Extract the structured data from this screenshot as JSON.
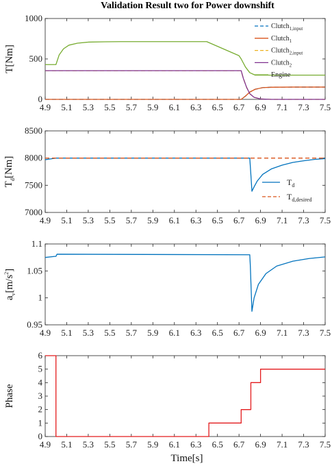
{
  "title": "Validation Result two for Power downshift",
  "xlabel": "Time[s]",
  "x_ticks": [
    "4.9",
    "5.1",
    "5.3",
    "5.5",
    "5.7",
    "5.9",
    "6.1",
    "6.3",
    "6.5",
    "6.7",
    "6.9",
    "7.1",
    "7.3",
    "7.5"
  ],
  "colors": {
    "blue": "#0072bd",
    "orange": "#d95319",
    "yellow": "#edb120",
    "purple": "#7e2f8e",
    "green": "#77ac30",
    "red": "#e31a1c"
  },
  "chart_data": [
    {
      "type": "line",
      "ylabel": "T[Nm]",
      "xlim": [
        4.9,
        7.5
      ],
      "ylim": [
        0,
        1000
      ],
      "y_ticks": [
        "0",
        "500",
        "1000"
      ],
      "legend": {
        "placement": "top-right"
      },
      "series": [
        {
          "name": "Clutch",
          "sub": "1,input",
          "color": "#0072bd",
          "dash": true,
          "x": [
            4.9,
            6.72,
            6.76,
            6.8,
            6.85,
            6.92,
            7.0,
            7.2,
            7.5
          ],
          "y": [
            0,
            0,
            40,
            90,
            125,
            145,
            150,
            152,
            152
          ]
        },
        {
          "name": "Clutch",
          "sub": "1",
          "color": "#d95319",
          "dash": false,
          "x": [
            4.9,
            6.72,
            6.76,
            6.8,
            6.85,
            6.92,
            7.0,
            7.2,
            7.5
          ],
          "y": [
            0,
            0,
            40,
            90,
            125,
            145,
            150,
            152,
            152
          ]
        },
        {
          "name": "Clutch",
          "sub": "2,input",
          "color": "#edb120",
          "dash": true,
          "x": [
            4.9,
            6.72,
            6.74,
            6.77,
            6.8,
            6.84,
            6.9,
            7.0,
            7.5
          ],
          "y": [
            355,
            355,
            260,
            150,
            70,
            25,
            5,
            0,
            0
          ]
        },
        {
          "name": "Clutch",
          "sub": "2",
          "color": "#7e2f8e",
          "dash": false,
          "x": [
            4.9,
            6.72,
            6.74,
            6.77,
            6.8,
            6.84,
            6.9,
            7.0,
            7.5
          ],
          "y": [
            355,
            355,
            260,
            150,
            70,
            25,
            5,
            0,
            0
          ]
        },
        {
          "name": "Engine",
          "sub": "",
          "color": "#77ac30",
          "dash": false,
          "x": [
            4.9,
            5.0,
            5.03,
            5.07,
            5.12,
            5.2,
            5.3,
            5.45,
            5.6,
            6.4,
            6.7,
            6.72,
            6.76,
            6.8,
            6.85,
            7.5
          ],
          "y": [
            430,
            430,
            550,
            625,
            670,
            695,
            708,
            712,
            714,
            714,
            540,
            500,
            400,
            330,
            300,
            300
          ]
        }
      ]
    },
    {
      "type": "line",
      "ylabel": "T",
      "ylabel_sub": "d",
      "ylabel_unit": "[Nm]",
      "xlim": [
        4.9,
        7.5
      ],
      "ylim": [
        7000,
        8500
      ],
      "y_ticks": [
        "7000",
        "7500",
        "8000",
        "8500"
      ],
      "legend": {
        "placement": "bottom-right"
      },
      "series": [
        {
          "name": "T",
          "sub": "d",
          "color": "#0072bd",
          "dash": false,
          "x": [
            4.9,
            4.95,
            5.0,
            5.05,
            6.8,
            6.81,
            6.82,
            6.84,
            6.87,
            6.92,
            7.0,
            7.1,
            7.2,
            7.3,
            7.4,
            7.5
          ],
          "y": [
            7970,
            7985,
            8000,
            8000,
            8000,
            7700,
            7390,
            7470,
            7580,
            7700,
            7800,
            7870,
            7920,
            7950,
            7975,
            7990
          ]
        },
        {
          "name": "T",
          "sub": "d,desired",
          "color": "#d95319",
          "dash": true,
          "x": [
            4.9,
            7.5
          ],
          "y": [
            8000,
            8000
          ]
        }
      ]
    },
    {
      "type": "line",
      "ylabel": "a",
      "ylabel_sub": "v",
      "ylabel_unit": "[m/s",
      "ylabel_sup": "2",
      "ylabel_close": "]",
      "xlim": [
        4.9,
        7.5
      ],
      "ylim": [
        0.95,
        1.1
      ],
      "y_ticks": [
        "0.95",
        "1",
        "1.05",
        "1.1"
      ],
      "series": [
        {
          "name": "",
          "color": "#0072bd",
          "dash": false,
          "x": [
            4.9,
            4.99,
            5.0,
            5.01,
            6.8,
            6.805,
            6.82,
            6.84,
            6.88,
            6.95,
            7.05,
            7.2,
            7.35,
            7.5
          ],
          "y": [
            1.075,
            1.077,
            1.077,
            1.081,
            1.08,
            1.06,
            0.975,
            1.0,
            1.025,
            1.045,
            1.059,
            1.068,
            1.073,
            1.076
          ]
        }
      ]
    },
    {
      "type": "line",
      "ylabel": "Phase",
      "xlim": [
        4.9,
        7.5
      ],
      "ylim": [
        0,
        6
      ],
      "y_ticks": [
        "0",
        "1",
        "2",
        "3",
        "4",
        "5",
        "6"
      ],
      "series": [
        {
          "name": "",
          "color": "#e31a1c",
          "dash": false,
          "step": true,
          "x": [
            4.9,
            5.0,
            5.0,
            6.42,
            6.42,
            6.72,
            6.72,
            6.81,
            6.81,
            6.9,
            6.9,
            7.5
          ],
          "y": [
            6,
            6,
            0,
            0,
            1,
            1,
            2,
            2,
            4,
            4,
            5,
            5
          ]
        }
      ]
    }
  ]
}
